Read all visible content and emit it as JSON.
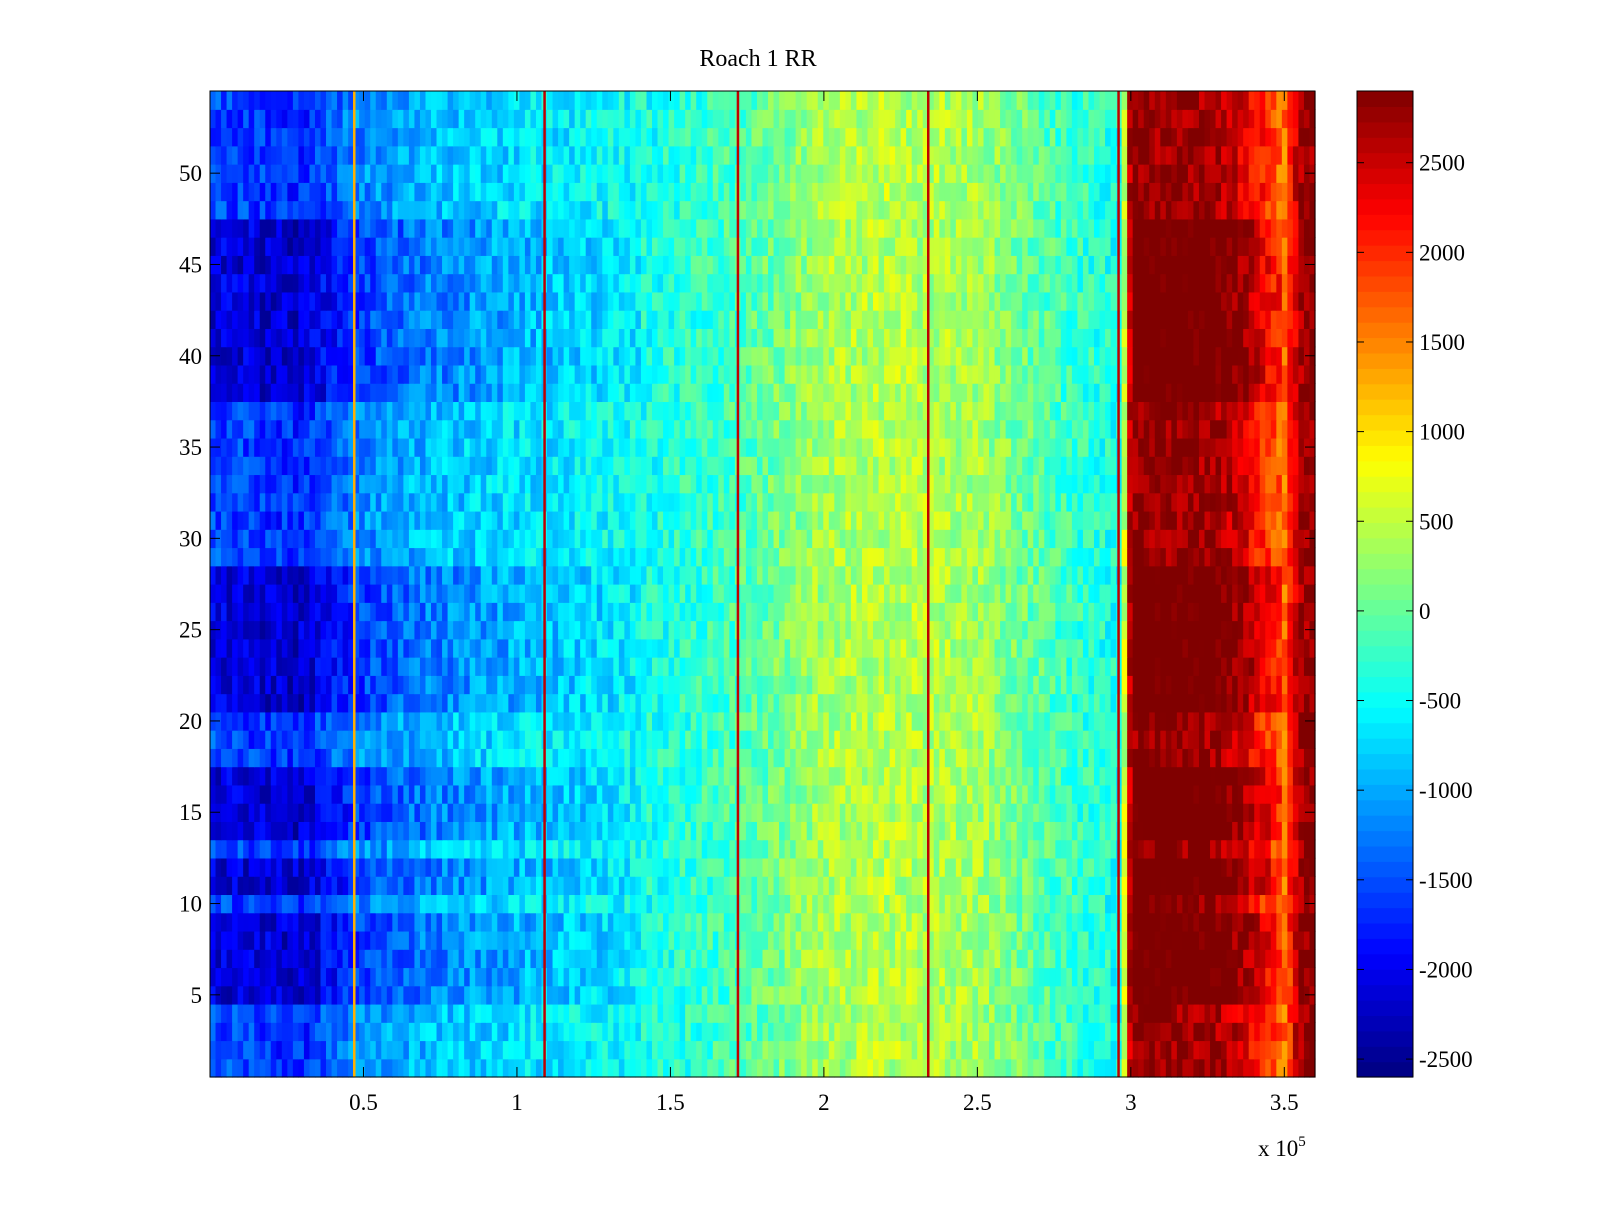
{
  "chart_data": {
    "type": "heatmap",
    "title": "Roach 1 RR",
    "xlabel": "",
    "ylabel": "",
    "x_exponent_label": "x 10",
    "x_exponent_power": "5",
    "xlim": [
      0.0,
      3.6
    ],
    "ylim": [
      0.5,
      54.5
    ],
    "x_ticks": [
      0.5,
      1.0,
      1.5,
      2.0,
      2.5,
      3.0,
      3.5
    ],
    "x_tick_labels": [
      "0.5",
      "1",
      "1.5",
      "2",
      "2.5",
      "3",
      "3.5"
    ],
    "y_ticks": [
      5,
      10,
      15,
      20,
      25,
      30,
      35,
      40,
      45,
      50
    ],
    "y_tick_labels": [
      "5",
      "10",
      "15",
      "20",
      "25",
      "30",
      "35",
      "40",
      "45",
      "50"
    ],
    "rows": 54,
    "colormap": "jet",
    "colorbar": {
      "clim": [
        -2600,
        2900
      ],
      "ticks": [
        -2500,
        -2000,
        -1500,
        -1000,
        -500,
        0,
        500,
        1000,
        1500,
        2000,
        2500
      ],
      "tick_labels": [
        "-2500",
        "-2000",
        "-1500",
        "-1000",
        "-500",
        "0",
        "500",
        "1000",
        "1500",
        "2000",
        "2500"
      ]
    },
    "value_profile_x": [
      0.0,
      0.3,
      0.47,
      0.7,
      1.0,
      1.4,
      1.72,
      2.0,
      2.2,
      2.5,
      2.75,
      2.97,
      3.0,
      3.28,
      3.38,
      3.5,
      3.55,
      3.6
    ],
    "value_profile_v": [
      -1500,
      -1700,
      -1200,
      -900,
      -700,
      -450,
      -150,
      350,
      450,
      350,
      -150,
      -450,
      2850,
      2750,
      2350,
      1600,
      2750,
      2850
    ],
    "dark_row_bands": [
      [
        5,
        9
      ],
      [
        11,
        12
      ],
      [
        14,
        17
      ],
      [
        21,
        28
      ],
      [
        38,
        47
      ]
    ],
    "vertical_lines_x": [
      0.47,
      1.09,
      1.72,
      2.34,
      2.96
    ]
  }
}
